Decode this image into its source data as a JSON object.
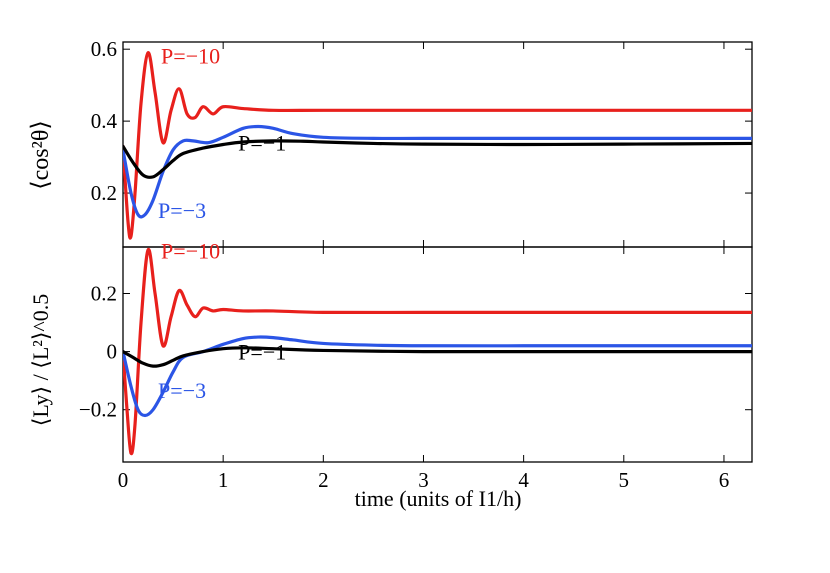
{
  "chart_data": [
    {
      "type": "line",
      "ylabel": "⟨cos²θ⟩",
      "xlim": [
        0,
        6.28
      ],
      "ylim": [
        0.05,
        0.62
      ],
      "yticks": [
        0.2,
        0.4,
        0.6
      ],
      "yticklabels": [
        "0.2",
        "0.4",
        "0.6"
      ],
      "grid": false,
      "series": [
        {
          "name": "P=−10",
          "color": "#e8201c",
          "label_at": [
            0.38,
            0.56
          ],
          "x": [
            0,
            0.05,
            0.08,
            0.12,
            0.18,
            0.25,
            0.32,
            0.4,
            0.48,
            0.56,
            0.64,
            0.72,
            0.8,
            0.9,
            1.0,
            1.2,
            1.5,
            2.0,
            3.0,
            4.0,
            5.0,
            6.28
          ],
          "y": [
            0.33,
            0.12,
            0.08,
            0.2,
            0.45,
            0.59,
            0.48,
            0.34,
            0.43,
            0.49,
            0.42,
            0.41,
            0.44,
            0.42,
            0.44,
            0.435,
            0.43,
            0.43,
            0.43,
            0.43,
            0.43,
            0.43
          ]
        },
        {
          "name": "P=−3",
          "color": "#2b55e6",
          "label_at": [
            0.35,
            0.13
          ],
          "x": [
            0,
            0.08,
            0.15,
            0.22,
            0.3,
            0.4,
            0.5,
            0.6,
            0.7,
            0.85,
            1.0,
            1.2,
            1.35,
            1.5,
            1.7,
            2.0,
            2.5,
            3.0,
            4.0,
            5.0,
            6.28
          ],
          "y": [
            0.32,
            0.2,
            0.14,
            0.14,
            0.18,
            0.26,
            0.32,
            0.345,
            0.345,
            0.34,
            0.355,
            0.38,
            0.385,
            0.38,
            0.365,
            0.355,
            0.352,
            0.352,
            0.352,
            0.352,
            0.352
          ]
        },
        {
          "name": "P=−1",
          "color": "#000000",
          "label_at": [
            1.15,
            0.318
          ],
          "x": [
            0,
            0.1,
            0.2,
            0.3,
            0.4,
            0.5,
            0.6,
            0.8,
            1.0,
            1.2,
            1.5,
            1.8,
            2.0,
            2.5,
            3.0,
            4.0,
            5.0,
            6.28
          ],
          "y": [
            0.33,
            0.285,
            0.25,
            0.245,
            0.265,
            0.29,
            0.31,
            0.325,
            0.335,
            0.342,
            0.345,
            0.344,
            0.342,
            0.338,
            0.336,
            0.335,
            0.336,
            0.338
          ]
        }
      ]
    },
    {
      "type": "line",
      "ylabel": "⟨Ly⟩ / ⟨L²⟩^0.5",
      "xlabel": "time (units of I1/h)",
      "xlim": [
        0,
        6.28
      ],
      "ylim": [
        -0.38,
        0.36
      ],
      "xticks": [
        0,
        1,
        2,
        3,
        4,
        5,
        6
      ],
      "xticklabels": [
        "0",
        "1",
        "2",
        "3",
        "4",
        "5",
        "6"
      ],
      "yticks": [
        -0.2,
        0,
        0.2
      ],
      "yticklabels": [
        "−0.2",
        "0",
        "0.2"
      ],
      "grid": false,
      "series": [
        {
          "name": "P=−10",
          "color": "#e8201c",
          "label_at": [
            0.38,
            0.32
          ],
          "x": [
            0,
            0.04,
            0.08,
            0.12,
            0.18,
            0.25,
            0.32,
            0.4,
            0.48,
            0.56,
            0.64,
            0.72,
            0.8,
            0.9,
            1.0,
            1.2,
            1.5,
            2.0,
            3.0,
            4.0,
            5.0,
            6.28
          ],
          "y": [
            0.0,
            -0.2,
            -0.35,
            -0.25,
            0.1,
            0.35,
            0.2,
            0.02,
            0.12,
            0.21,
            0.16,
            0.12,
            0.15,
            0.14,
            0.145,
            0.14,
            0.14,
            0.135,
            0.135,
            0.135,
            0.135,
            0.135
          ]
        },
        {
          "name": "P=−3",
          "color": "#2b55e6",
          "label_at": [
            0.35,
            -0.16
          ],
          "x": [
            0,
            0.08,
            0.15,
            0.22,
            0.3,
            0.4,
            0.5,
            0.6,
            0.8,
            1.0,
            1.2,
            1.35,
            1.5,
            1.7,
            2.0,
            2.5,
            3.0,
            4.0,
            5.0,
            6.28
          ],
          "y": [
            0.0,
            -0.12,
            -0.2,
            -0.22,
            -0.2,
            -0.14,
            -0.07,
            -0.02,
            0.0,
            0.025,
            0.045,
            0.05,
            0.048,
            0.04,
            0.028,
            0.022,
            0.02,
            0.02,
            0.02,
            0.02
          ]
        },
        {
          "name": "P=−1",
          "color": "#000000",
          "label_at": [
            1.15,
            -0.028
          ],
          "x": [
            0,
            0.1,
            0.2,
            0.3,
            0.4,
            0.5,
            0.6,
            0.8,
            1.0,
            1.2,
            1.5,
            2.0,
            3.0,
            4.0,
            5.0,
            6.28
          ],
          "y": [
            0.0,
            -0.02,
            -0.04,
            -0.05,
            -0.045,
            -0.03,
            -0.015,
            0.0,
            0.01,
            0.013,
            0.01,
            0.004,
            0.0,
            0.0,
            0.0,
            0.0
          ]
        }
      ]
    }
  ]
}
